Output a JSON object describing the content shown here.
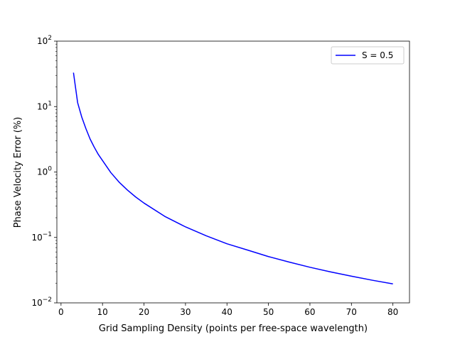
{
  "chart_data": {
    "type": "line",
    "title": "",
    "xlabel": "Grid Sampling Density (points per free-space wavelength)",
    "ylabel": "Phase Velocity Error (%)",
    "xlim": [
      -1,
      84
    ],
    "ylim": [
      0.01,
      100
    ],
    "yscale": "log",
    "grid": false,
    "legend_position": "top-right",
    "x_ticks": [
      0,
      10,
      20,
      30,
      40,
      50,
      60,
      70,
      80
    ],
    "x_tick_labels": [
      "0",
      "10",
      "20",
      "30",
      "40",
      "50",
      "60",
      "70",
      "80"
    ],
    "y_ticks": [
      0.01,
      0.1,
      1,
      10,
      100
    ],
    "y_tick_labels": [
      {
        "base": "10",
        "exp": "−2"
      },
      {
        "base": "10",
        "exp": "−1"
      },
      {
        "base": "10",
        "exp": "0"
      },
      {
        "base": "10",
        "exp": "1"
      },
      {
        "base": "10",
        "exp": "2"
      }
    ],
    "series": [
      {
        "name": "S = 0.5",
        "color": "#0000ff",
        "x": [
          3,
          4,
          5,
          6,
          7,
          8,
          9,
          10,
          12,
          14,
          16,
          18,
          20,
          25,
          30,
          35,
          40,
          45,
          50,
          55,
          60,
          65,
          70,
          75,
          80
        ],
        "y": [
          33.0,
          11.5,
          6.9,
          4.6,
          3.2,
          2.4,
          1.85,
          1.5,
          0.98,
          0.7,
          0.53,
          0.415,
          0.335,
          0.21,
          0.145,
          0.106,
          0.08,
          0.064,
          0.051,
          0.042,
          0.035,
          0.0297,
          0.0256,
          0.0222,
          0.0195
        ]
      }
    ]
  }
}
